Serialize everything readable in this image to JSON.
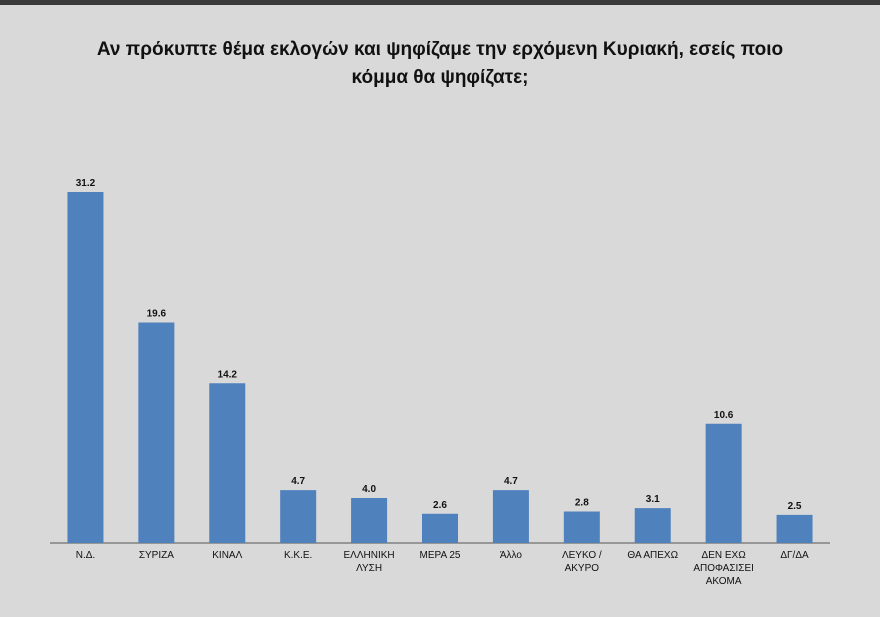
{
  "chart_data": {
    "type": "bar",
    "title": "Αν πρόκυπτε θέμα εκλογών και ψηφίζαμε την ερχόμενη Κυριακή, εσείς ποιο κόμμα θα ψηφίζατε;",
    "categories": [
      "Ν.Δ.",
      "ΣΥΡΙΖΑ",
      "ΚΙΝΑΛ",
      "Κ.Κ.Ε.",
      "ΕΛΛΗΝΙΚΗ ΛΥΣΗ",
      "ΜΕΡΑ 25",
      "Άλλο",
      "ΛΕΥΚΟ / ΑΚΥΡΟ",
      "ΘΑ ΑΠΕΧΩ",
      "ΔΕΝ ΕΧΩ ΑΠΟΦΑΣΙΣΕΙ ΑΚΟΜΑ",
      "ΔΓ/ΔΑ"
    ],
    "values": [
      31.2,
      19.6,
      14.2,
      4.7,
      4.0,
      2.6,
      4.7,
      2.8,
      3.1,
      10.6,
      2.5
    ],
    "value_labels": [
      "31.2",
      "19.6",
      "14.2",
      "4.7",
      "4.0",
      "2.6",
      "4.7",
      "2.8",
      "3.1",
      "10.6",
      "2.5"
    ],
    "color": "#4f81bd"
  }
}
